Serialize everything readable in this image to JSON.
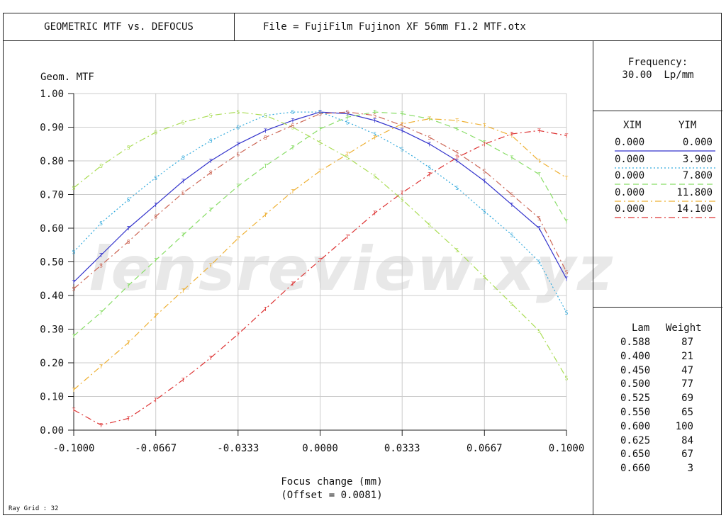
{
  "header": {
    "title": "GEOMETRIC MTF vs. DEFOCUS",
    "file": "File = FujiFilm Fujinon XF 56mm F1.2 MTF.otx"
  },
  "frequency": {
    "label": "Frequency:",
    "value": "30.00  Lp/mm"
  },
  "field_table": {
    "col1": "XIM",
    "col2": "YIM",
    "rows": [
      {
        "xim": "0.000",
        "yim": "0.000",
        "color": "#3333cc",
        "dash": "solid"
      },
      {
        "xim": "0.000",
        "yim": "3.900",
        "color": "#33aadd",
        "dash": "dotted"
      },
      {
        "xim": "0.000",
        "yim": "7.800",
        "color": "#88dd66",
        "dash": "dashed"
      },
      {
        "xim": "0.000",
        "yim": "11.800",
        "color": "#eeb033",
        "dash": "dashdot"
      },
      {
        "xim": "0.000",
        "yim": "14.100",
        "color": "#dd3333",
        "dash": "dashdot"
      }
    ]
  },
  "wavelength_table": {
    "col1": "Lam",
    "col2": "Weight",
    "rows": [
      {
        "lam": "0.588",
        "weight": "87"
      },
      {
        "lam": "0.400",
        "weight": "21"
      },
      {
        "lam": "0.450",
        "weight": "47"
      },
      {
        "lam": "0.500",
        "weight": "77"
      },
      {
        "lam": "0.525",
        "weight": "69"
      },
      {
        "lam": "0.550",
        "weight": "65"
      },
      {
        "lam": "0.600",
        "weight": "100"
      },
      {
        "lam": "0.625",
        "weight": "84"
      },
      {
        "lam": "0.650",
        "weight": "67"
      },
      {
        "lam": "0.660",
        "weight": "3"
      }
    ]
  },
  "ray_grid": "Ray Grid : 32",
  "watermark": "lensreview.xyz",
  "chart_data": {
    "type": "line",
    "ylabel": "Geom. MTF",
    "xlabel": "Focus change (mm)",
    "xlabel2": "(Offset = 0.0081)",
    "xlim": [
      -0.1,
      0.1
    ],
    "ylim": [
      0,
      1
    ],
    "x_ticks": [
      "-0.1000",
      "-0.0667",
      "-0.0333",
      "0.0000",
      "0.0333",
      "0.0667",
      "0.1000"
    ],
    "y_ticks": [
      "0.00",
      "0.10",
      "0.20",
      "0.30",
      "0.40",
      "0.50",
      "0.60",
      "0.70",
      "0.80",
      "0.90",
      "1.00"
    ],
    "grid": true,
    "x": [
      -0.1,
      -0.0889,
      -0.0778,
      -0.0667,
      -0.0556,
      -0.0444,
      -0.0333,
      -0.0222,
      -0.0111,
      0.0,
      0.0111,
      0.0222,
      0.0333,
      0.0444,
      0.0556,
      0.0667,
      0.0778,
      0.0889,
      0.1
    ],
    "series": [
      {
        "color": "#3333cc",
        "dash": "solid",
        "marker": "T",
        "values": [
          0.44,
          0.52,
          0.6,
          0.67,
          0.74,
          0.8,
          0.85,
          0.89,
          0.92,
          0.945,
          0.94,
          0.92,
          0.89,
          0.85,
          0.8,
          0.74,
          0.67,
          0.6,
          0.45
        ]
      },
      {
        "color": "#33aadd",
        "dash": "dotted",
        "marker": "S",
        "values": [
          0.53,
          0.615,
          0.685,
          0.75,
          0.81,
          0.86,
          0.9,
          0.935,
          0.945,
          0.945,
          0.915,
          0.88,
          0.835,
          0.78,
          0.72,
          0.65,
          0.58,
          0.5,
          0.35
        ]
      },
      {
        "color": "#88dd66",
        "dash": "dashed",
        "marker": "T",
        "values": [
          0.28,
          0.35,
          0.43,
          0.505,
          0.58,
          0.655,
          0.725,
          0.785,
          0.84,
          0.895,
          0.93,
          0.945,
          0.94,
          0.925,
          0.895,
          0.855,
          0.81,
          0.76,
          0.62
        ]
      },
      {
        "color": "#eeb033",
        "dash": "dashdot",
        "marker": "T",
        "values": [
          0.12,
          0.19,
          0.26,
          0.34,
          0.415,
          0.49,
          0.57,
          0.64,
          0.71,
          0.77,
          0.82,
          0.87,
          0.91,
          0.925,
          0.92,
          0.905,
          0.875,
          0.8,
          0.75
        ]
      },
      {
        "color": "#dd3333",
        "dash": "dashdot",
        "marker": "T",
        "values": [
          0.06,
          0.015,
          0.035,
          0.09,
          0.15,
          0.215,
          0.285,
          0.36,
          0.435,
          0.505,
          0.575,
          0.645,
          0.705,
          0.76,
          0.81,
          0.85,
          0.88,
          0.89,
          0.875
        ]
      },
      {
        "color": "#aadd55",
        "dash": "dashdot",
        "marker": "S",
        "values": [
          0.72,
          0.785,
          0.84,
          0.885,
          0.915,
          0.935,
          0.945,
          0.935,
          0.9,
          0.855,
          0.81,
          0.755,
          0.685,
          0.61,
          0.535,
          0.455,
          0.375,
          0.295,
          0.155
        ]
      },
      {
        "color": "#cc6655",
        "dash": "dashdot",
        "marker": "S",
        "values": [
          0.42,
          0.49,
          0.56,
          0.635,
          0.705,
          0.765,
          0.82,
          0.87,
          0.905,
          0.94,
          0.945,
          0.935,
          0.905,
          0.87,
          0.825,
          0.77,
          0.7,
          0.63,
          0.47
        ]
      }
    ]
  }
}
